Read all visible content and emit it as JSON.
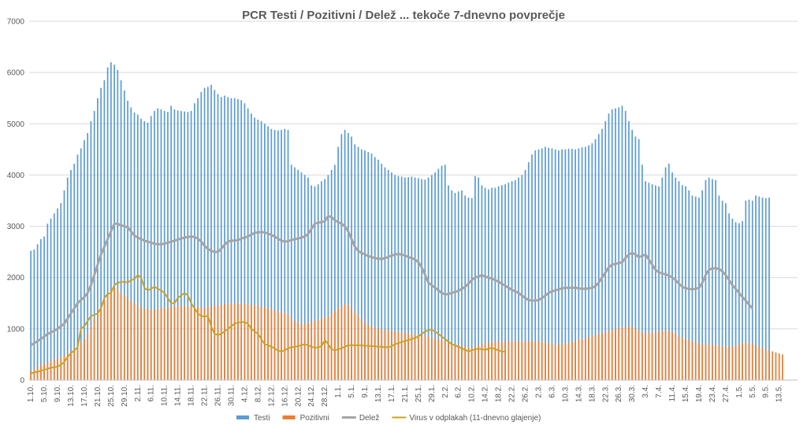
{
  "chart_data": {
    "type": "bar",
    "title": "PCR Testi / Pozitivni / Delež ... tekoče 7-dnevno povprečje",
    "xlabel": "",
    "ylabel": "",
    "ylim": [
      0,
      7000
    ],
    "y_ticks": [
      "0",
      "1000",
      "2000",
      "3000",
      "4000",
      "5000",
      "6000",
      "7000"
    ],
    "grid": true,
    "legend_position": "bottom",
    "x_tick_labels": [
      "1.10.",
      "5.10.",
      "9.10.",
      "13.10.",
      "17.10.",
      "21.10.",
      "25.10.",
      "29.10.",
      "2.11.",
      "6.11.",
      "10.11.",
      "14.11.",
      "18.11.",
      "22.11.",
      "26.11.",
      "30.11.",
      "4.12.",
      "8.12.",
      "12.12.",
      "16.12.",
      "20.12.",
      "24.12.",
      "28.12.",
      "1.1.",
      "5.1.",
      "9.1.",
      "13.1.",
      "17.1.",
      "21.1.",
      "25.1.",
      "29.1.",
      "2.2.",
      "6.2.",
      "10.2.",
      "14.2.",
      "18.2.",
      "22.2.",
      "26.2.",
      "2.3.",
      "6.3.",
      "10.3.",
      "14.3.",
      "18.3.",
      "22.3.",
      "26.3.",
      "30.3.",
      "3.4.",
      "7.4.",
      "11.4.",
      "15.4.",
      "19.4.",
      "23.4.",
      "27.4.",
      "1.5.",
      "5.5.",
      "9.5.",
      "13.5."
    ],
    "series": [
      {
        "name": "Testi",
        "type": "bar",
        "color": "#5b9bd5",
        "values": [
          2520,
          2550,
          2650,
          2750,
          2800,
          3050,
          3150,
          3250,
          3350,
          3450,
          3700,
          3950,
          4100,
          4220,
          4400,
          4520,
          4680,
          4820,
          5050,
          5250,
          5500,
          5700,
          5850,
          6100,
          6200,
          6150,
          6050,
          5850,
          5650,
          5450,
          5320,
          5220,
          5180,
          5100,
          5050,
          5020,
          5150,
          5250,
          5300,
          5280,
          5250,
          5230,
          5350,
          5280,
          5260,
          5250,
          5240,
          5230,
          5250,
          5400,
          5500,
          5620,
          5700,
          5720,
          5760,
          5660,
          5580,
          5520,
          5550,
          5520,
          5500,
          5500,
          5480,
          5460,
          5400,
          5300,
          5200,
          5120,
          5080,
          5050,
          5000,
          4950,
          4900,
          4880,
          4870,
          4880,
          4900,
          4880,
          4200,
          4150,
          4100,
          4050,
          4000,
          3950,
          3800,
          3780,
          3820,
          3880,
          3920,
          4000,
          4100,
          4200,
          4550,
          4800,
          4880,
          4820,
          4750,
          4600,
          4550,
          4500,
          4480,
          4450,
          4420,
          4350,
          4300,
          4220,
          4150,
          4100,
          4050,
          4000,
          3980,
          3970,
          3950,
          3960,
          3970,
          3950,
          3940,
          3920,
          3910,
          3950,
          4000,
          4050,
          4120,
          4180,
          4200,
          3800,
          3700,
          3650,
          3680,
          3700,
          3600,
          3560,
          3550,
          3980,
          3950,
          3800,
          3750,
          3720,
          3750,
          3750,
          3780,
          3800,
          3820,
          3850,
          3880,
          3900,
          3950,
          4000,
          4100,
          4250,
          4400,
          4480,
          4500,
          4520,
          4550,
          4530,
          4520,
          4500,
          4480,
          4500,
          4500,
          4510,
          4510,
          4500,
          4520,
          4540,
          4550,
          4580,
          4620,
          4700,
          4800,
          4900,
          5050,
          5200,
          5280,
          5300,
          5320,
          5350,
          5250,
          5050,
          4880,
          4750,
          4700,
          4200,
          3880,
          3850,
          3820,
          3800,
          3780,
          3950,
          4150,
          4220,
          4050,
          3950,
          3880,
          3800,
          3780,
          3700,
          3600,
          3580,
          3560,
          3700,
          3900,
          3950,
          3920,
          3900,
          3600,
          3500,
          3450,
          3250,
          3150,
          3080,
          3060,
          3100,
          3500,
          3520,
          3500,
          3600,
          3580,
          3560,
          3550,
          3560
        ]
      },
      {
        "name": "Pozitivni",
        "type": "bar",
        "color": "#ed7d31",
        "values": [
          180,
          220,
          260,
          300,
          320,
          350,
          370,
          400,
          420,
          450,
          480,
          520,
          560,
          620,
          680,
          720,
          800,
          900,
          1050,
          1200,
          1350,
          1450,
          1550,
          1650,
          1750,
          1800,
          1780,
          1700,
          1650,
          1600,
          1550,
          1500,
          1450,
          1420,
          1400,
          1380,
          1370,
          1380,
          1390,
          1400,
          1410,
          1420,
          1430,
          1440,
          1440,
          1450,
          1450,
          1440,
          1430,
          1430,
          1420,
          1420,
          1420,
          1430,
          1440,
          1450,
          1460,
          1470,
          1480,
          1490,
          1500,
          1500,
          1500,
          1500,
          1490,
          1480,
          1470,
          1460,
          1450,
          1430,
          1420,
          1400,
          1380,
          1360,
          1340,
          1320,
          1300,
          1280,
          1200,
          1150,
          1120,
          1100,
          1100,
          1120,
          1140,
          1160,
          1180,
          1200,
          1220,
          1250,
          1300,
          1350,
          1400,
          1450,
          1480,
          1460,
          1400,
          1320,
          1250,
          1180,
          1120,
          1080,
          1050,
          1020,
          1000,
          990,
          980,
          970,
          960,
          950,
          940,
          930,
          920,
          910,
          900,
          890,
          880,
          870,
          860,
          850,
          840,
          820,
          800,
          780,
          760,
          740,
          720,
          700,
          680,
          660,
          650,
          640,
          630,
          650,
          680,
          700,
          720,
          730,
          740,
          750,
          750,
          750,
          750,
          760,
          760,
          760,
          760,
          760,
          760,
          760,
          760,
          760,
          760,
          750,
          740,
          720,
          710,
          700,
          700,
          700,
          710,
          730,
          750,
          770,
          790,
          800,
          820,
          840,
          860,
          880,
          900,
          920,
          940,
          960,
          980,
          1000,
          1020,
          1030,
          1040,
          1050,
          1040,
          1000,
          960,
          930,
          920,
          920,
          930,
          940,
          950,
          960,
          970,
          960,
          940,
          900,
          860,
          820,
          800,
          780,
          760,
          740,
          720,
          700,
          700,
          700,
          690,
          680,
          670,
          660,
          650,
          650,
          660,
          680,
          700,
          720,
          740,
          720,
          700,
          680,
          650,
          620,
          600,
          580,
          560,
          540,
          520,
          500
        ]
      },
      {
        "name": "Delež",
        "type": "line",
        "color": "#a5a5a5",
        "values": [
          680,
          720,
          760,
          800,
          850,
          900,
          930,
          960,
          1000,
          1050,
          1100,
          1200,
          1300,
          1400,
          1500,
          1560,
          1620,
          1700,
          1850,
          2050,
          2250,
          2450,
          2600,
          2750,
          2900,
          3050,
          3050,
          3020,
          3000,
          2980,
          2900,
          2820,
          2780,
          2750,
          2720,
          2700,
          2680,
          2660,
          2650,
          2650,
          2660,
          2680,
          2700,
          2720,
          2740,
          2760,
          2780,
          2790,
          2800,
          2790,
          2760,
          2700,
          2620,
          2560,
          2520,
          2500,
          2500,
          2560,
          2640,
          2700,
          2720,
          2720,
          2730,
          2760,
          2780,
          2800,
          2840,
          2870,
          2880,
          2890,
          2880,
          2860,
          2830,
          2800,
          2760,
          2720,
          2700,
          2710,
          2730,
          2750,
          2760,
          2780,
          2800,
          2850,
          2950,
          3050,
          3070,
          3080,
          3100,
          3200,
          3180,
          3120,
          3080,
          3050,
          3000,
          2900,
          2750,
          2600,
          2520,
          2480,
          2450,
          2420,
          2400,
          2380,
          2370,
          2360,
          2380,
          2400,
          2430,
          2450,
          2460,
          2450,
          2430,
          2400,
          2380,
          2350,
          2300,
          2200,
          2050,
          1900,
          1850,
          1800,
          1750,
          1700,
          1670,
          1680,
          1700,
          1720,
          1740,
          1780,
          1820,
          1880,
          1950,
          2000,
          2020,
          2050,
          2020,
          2000,
          1980,
          1950,
          1920,
          1880,
          1840,
          1800,
          1760,
          1730,
          1700,
          1650,
          1600,
          1560,
          1550,
          1550,
          1560,
          1600,
          1650,
          1700,
          1730,
          1750,
          1770,
          1790,
          1800,
          1800,
          1800,
          1800,
          1790,
          1780,
          1780,
          1790,
          1800,
          1830,
          1900,
          2000,
          2100,
          2200,
          2250,
          2270,
          2280,
          2300,
          2380,
          2450,
          2480,
          2450,
          2400,
          2420,
          2450,
          2350,
          2250,
          2150,
          2100,
          2080,
          2060,
          2040,
          2000,
          1950,
          1880,
          1820,
          1790,
          1780,
          1770,
          1780,
          1800,
          1900,
          2050,
          2150,
          2180,
          2180,
          2170,
          2120,
          2050,
          1950,
          1850,
          1780,
          1700,
          1620,
          1550,
          1470,
          1400
        ]
      },
      {
        "name": "Virus v odplakah (11-dnevno glajenje)",
        "type": "line",
        "color": "#c9a227",
        "values": [
          130,
          150,
          160,
          180,
          200,
          220,
          240,
          250,
          260,
          300,
          350,
          450,
          520,
          580,
          640,
          1000,
          1050,
          1150,
          1250,
          1270,
          1300,
          1400,
          1600,
          1680,
          1700,
          1850,
          1900,
          1910,
          1920,
          1900,
          1950,
          1970,
          2050,
          2000,
          1800,
          1750,
          1780,
          1820,
          1780,
          1750,
          1700,
          1600,
          1500,
          1500,
          1600,
          1650,
          1700,
          1650,
          1500,
          1400,
          1300,
          1250,
          1240,
          1250,
          1050,
          900,
          880,
          900,
          950,
          1000,
          1050,
          1100,
          1120,
          1130,
          1130,
          1100,
          1000,
          950,
          900,
          800,
          700,
          680,
          650,
          620,
          570,
          560,
          580,
          620,
          640,
          650,
          660,
          680,
          700,
          680,
          650,
          630,
          640,
          660,
          780,
          700,
          600,
          580,
          600,
          620,
          650,
          680,
          680,
          680,
          680,
          680,
          670,
          670,
          660,
          660,
          650,
          650,
          640,
          640,
          660,
          700,
          720,
          740,
          760,
          780,
          800,
          820,
          850,
          900,
          950,
          970,
          980,
          950,
          900,
          850,
          800,
          750,
          700,
          680,
          650,
          620,
          590,
          560,
          580,
          600,
          610,
          600,
          590,
          610,
          630,
          600,
          580,
          560,
          550
        ]
      }
    ]
  }
}
